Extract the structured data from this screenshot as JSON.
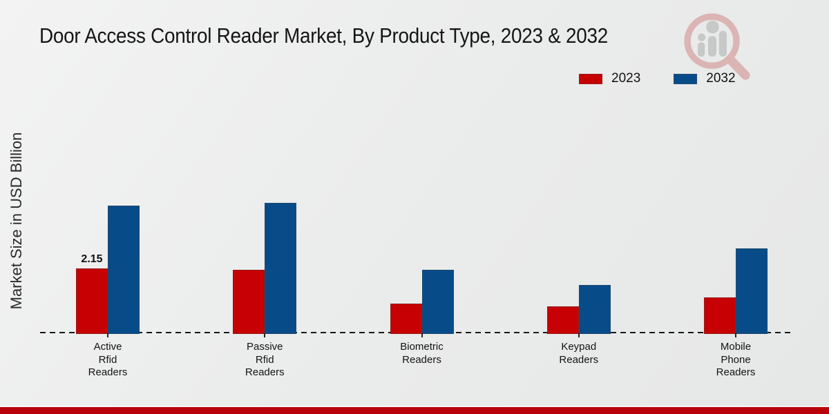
{
  "title": "Door Access Control Reader Market, By Product Type, 2023 & 2032",
  "watermark": {
    "name": "magnifier-bar-chart-logo",
    "ring_color": "#c96a6a",
    "bar_color": "#9a9a9a"
  },
  "footer": {
    "color": "#b80109"
  },
  "chart_data": {
    "type": "bar",
    "title": "Door Access Control Reader Market, By Product Type, 2023 & 2032",
    "xlabel": "",
    "ylabel": "Market Size in USD Billion",
    "categories": [
      "Active Rfid Readers",
      "Passive Rfid Readers",
      "Biometric Readers",
      "Keypad Readers",
      "Mobile Phone Readers"
    ],
    "series": [
      {
        "name": "2023",
        "color": "#c70103",
        "values": [
          2.15,
          2.1,
          1.0,
          0.9,
          1.2
        ],
        "data_labels": [
          "2.15",
          null,
          null,
          null,
          null
        ]
      },
      {
        "name": "2032",
        "color": "#084b89",
        "values": [
          4.2,
          4.3,
          2.1,
          1.6,
          2.8
        ],
        "data_labels": [
          null,
          null,
          null,
          null,
          null
        ]
      }
    ],
    "ylim": [
      0,
      4.5
    ],
    "grid": false,
    "y_ticks_visible": false,
    "legend_position": "top-right",
    "x_axis_style": "dashed-baseline"
  }
}
